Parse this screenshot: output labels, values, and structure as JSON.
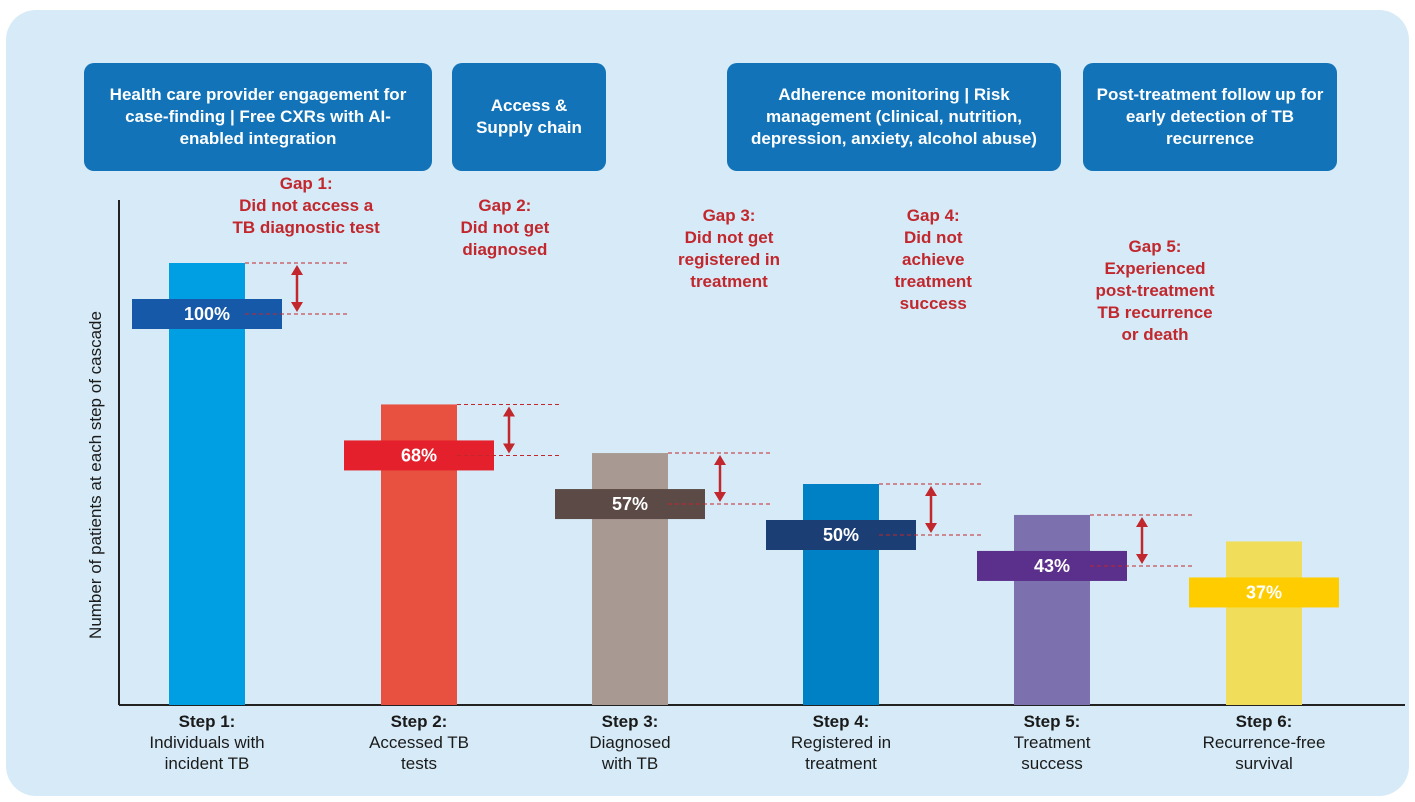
{
  "top_boxes": [
    {
      "text": "Health care provider engagement for case-finding | Free CXRs with AI-enabled integration"
    },
    {
      "text": "Access & Supply chain"
    },
    {
      "text": "Adherence monitoring | Risk management (clinical, nutrition, depression, anxiety, alcohol abuse)"
    },
    {
      "text": "Post-treatment follow up for early detection of TB recurrence"
    }
  ],
  "gaps": [
    {
      "title": "Gap 1:",
      "text": "Did not access a\nTB diagnostic test"
    },
    {
      "title": "Gap 2:",
      "text": "Did not get\ndiagnosed"
    },
    {
      "title": "Gap 3:",
      "text": "Did not get\nregistered in\ntreatment"
    },
    {
      "title": "Gap 4:",
      "text": "Did not\nachieve\ntreatment\nsuccess"
    },
    {
      "title": "Gap 5:",
      "text": "Experienced\npost-treatment\nTB recurrence\nor death"
    }
  ],
  "chart_data": {
    "type": "bar",
    "ylabel": "Number of patients at each step of cascade",
    "categories": [
      {
        "step": "Step 1:",
        "desc": "Individuals with\nincident TB"
      },
      {
        "step": "Step 2:",
        "desc": "Accessed TB\ntests"
      },
      {
        "step": "Step 3:",
        "desc": "Diagnosed\nwith TB"
      },
      {
        "step": "Step 4:",
        "desc": "Registered in\ntreatment"
      },
      {
        "step": "Step 5:",
        "desc": "Treatment\nsuccess"
      },
      {
        "step": "Step 6:",
        "desc": "Recurrence-free\nsurvival"
      }
    ],
    "values": [
      100,
      68,
      57,
      50,
      43,
      37
    ],
    "value_labels": [
      "100%",
      "68%",
      "57%",
      "50%",
      "43%",
      "37%"
    ],
    "bar_colors": [
      "#009fe3",
      "#e8513f",
      "#a89a93",
      "#0081c6",
      "#7d70af",
      "#f0de5a"
    ],
    "label_colors": [
      "#1559a8",
      "#e3202b",
      "#5b4a45",
      "#1b3f75",
      "#5b2f8c",
      "#ffcc00"
    ]
  }
}
